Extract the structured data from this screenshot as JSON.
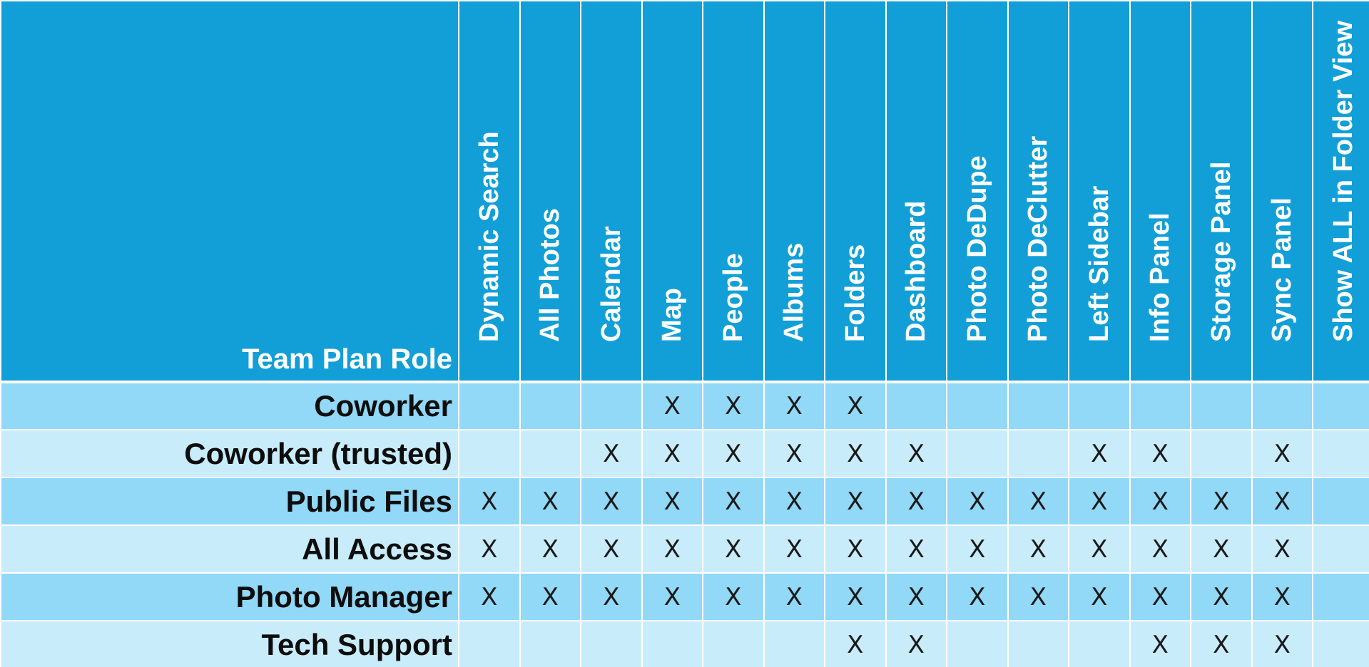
{
  "table": {
    "role_header": "Team Plan Role",
    "columns": [
      "Dynamic Search",
      "All Photos",
      "Calendar",
      "Map",
      "People",
      "Albums",
      "Folders",
      "Dashboard",
      "Photo DeDupe",
      "Photo DeClutter",
      "Left Sidebar",
      "Info Panel",
      "Storage Panel",
      "Sync Panel",
      "Show ALL in Folder View"
    ],
    "rows": [
      {
        "role": "Coworker",
        "cells": [
          "",
          "",
          "",
          "X",
          "X",
          "X",
          "X",
          "",
          "",
          "",
          "",
          "",
          "",
          "",
          ""
        ]
      },
      {
        "role": "Coworker (trusted)",
        "cells": [
          "",
          "",
          "X",
          "X",
          "X",
          "X",
          "X",
          "X",
          "",
          "",
          "X",
          "X",
          "",
          "X",
          ""
        ]
      },
      {
        "role": "Public Files",
        "cells": [
          "X",
          "X",
          "X",
          "X",
          "X",
          "X",
          "X",
          "X",
          "X",
          "X",
          "X",
          "X",
          "X",
          "X",
          ""
        ]
      },
      {
        "role": "All Access",
        "cells": [
          "X",
          "X",
          "X",
          "X",
          "X",
          "X",
          "X",
          "X",
          "X",
          "X",
          "X",
          "X",
          "X",
          "X",
          ""
        ]
      },
      {
        "role": "Photo Manager",
        "cells": [
          "X",
          "X",
          "X",
          "X",
          "X",
          "X",
          "X",
          "X",
          "X",
          "X",
          "X",
          "X",
          "X",
          "X",
          ""
        ]
      },
      {
        "role": "Tech Support",
        "cells": [
          "",
          "",
          "",
          "",
          "",
          "",
          "X",
          "X",
          "",
          "",
          "",
          "X",
          "X",
          "X",
          ""
        ]
      }
    ],
    "colors": {
      "header_bg": "#129fd8",
      "row_dark": "#92d8f7",
      "row_light": "#c9ecfb"
    }
  }
}
